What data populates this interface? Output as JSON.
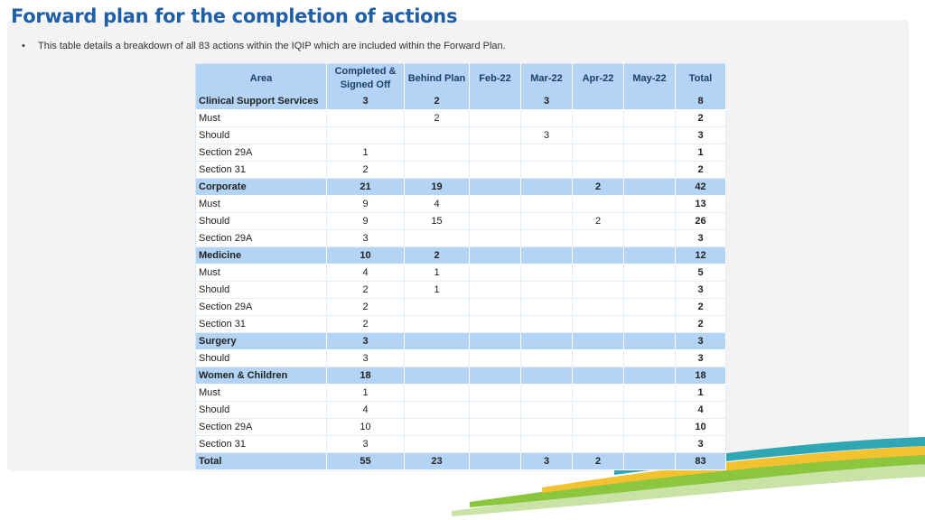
{
  "title": "Forward plan for the completion of actions",
  "bullet": "This table details a breakdown of all 83 actions within the IQIP which are included within the Forward Plan.",
  "bullet_symbol": "•",
  "table": {
    "headers": [
      "Area",
      "Completed & Signed Off",
      "Behind Plan",
      "Feb-22",
      "Mar-22",
      "Apr-22",
      "May-22",
      "Total"
    ],
    "rows": [
      {
        "type": "group",
        "cells": [
          "Clinical Support Services",
          "3",
          "2",
          "",
          "3",
          "",
          "",
          "8"
        ]
      },
      {
        "type": "item",
        "cells": [
          "Must",
          "",
          "2",
          "",
          "",
          "",
          "",
          "2"
        ]
      },
      {
        "type": "item",
        "cells": [
          "Should",
          "",
          "",
          "",
          "3",
          "",
          "",
          "3"
        ]
      },
      {
        "type": "item",
        "cells": [
          "Section 29A",
          "1",
          "",
          "",
          "",
          "",
          "",
          "1"
        ]
      },
      {
        "type": "item",
        "cells": [
          "Section 31",
          "2",
          "",
          "",
          "",
          "",
          "",
          "2"
        ]
      },
      {
        "type": "group",
        "cells": [
          "Corporate",
          "21",
          "19",
          "",
          "",
          "2",
          "",
          "42"
        ]
      },
      {
        "type": "item",
        "cells": [
          "Must",
          "9",
          "4",
          "",
          "",
          "",
          "",
          "13"
        ]
      },
      {
        "type": "item",
        "cells": [
          "Should",
          "9",
          "15",
          "",
          "",
          "2",
          "",
          "26"
        ]
      },
      {
        "type": "item",
        "cells": [
          "Section 29A",
          "3",
          "",
          "",
          "",
          "",
          "",
          "3"
        ]
      },
      {
        "type": "group",
        "cells": [
          "Medicine",
          "10",
          "2",
          "",
          "",
          "",
          "",
          "12"
        ]
      },
      {
        "type": "item",
        "cells": [
          "Must",
          "4",
          "1",
          "",
          "",
          "",
          "",
          "5"
        ]
      },
      {
        "type": "item",
        "cells": [
          "Should",
          "2",
          "1",
          "",
          "",
          "",
          "",
          "3"
        ]
      },
      {
        "type": "item",
        "cells": [
          "Section 29A",
          "2",
          "",
          "",
          "",
          "",
          "",
          "2"
        ]
      },
      {
        "type": "item",
        "cells": [
          "Section 31",
          "2",
          "",
          "",
          "",
          "",
          "",
          "2"
        ]
      },
      {
        "type": "group",
        "cells": [
          "Surgery",
          "3",
          "",
          "",
          "",
          "",
          "",
          "3"
        ]
      },
      {
        "type": "item",
        "cells": [
          "Should",
          "3",
          "",
          "",
          "",
          "",
          "",
          "3"
        ]
      },
      {
        "type": "group",
        "cells": [
          "Women & Children",
          "18",
          "",
          "",
          "",
          "",
          "",
          "18"
        ]
      },
      {
        "type": "item",
        "cells": [
          "Must",
          "1",
          "",
          "",
          "",
          "",
          "",
          "1"
        ]
      },
      {
        "type": "item",
        "cells": [
          "Should",
          "4",
          "",
          "",
          "",
          "",
          "",
          "4"
        ]
      },
      {
        "type": "item",
        "cells": [
          "Section 29A",
          "10",
          "",
          "",
          "",
          "",
          "",
          "10"
        ]
      },
      {
        "type": "item",
        "cells": [
          "Section 31",
          "3",
          "",
          "",
          "",
          "",
          "",
          "3"
        ]
      },
      {
        "type": "group",
        "cells": [
          "Total",
          "55",
          "23",
          "",
          "3",
          "2",
          "",
          "83"
        ]
      }
    ]
  },
  "colors": {
    "title": "#1f5fa8",
    "header_fill": "#b3d4f4",
    "swoosh_green": "#8cc63f",
    "swoosh_yellow": "#f2c230",
    "swoosh_teal": "#2fa6b3"
  }
}
